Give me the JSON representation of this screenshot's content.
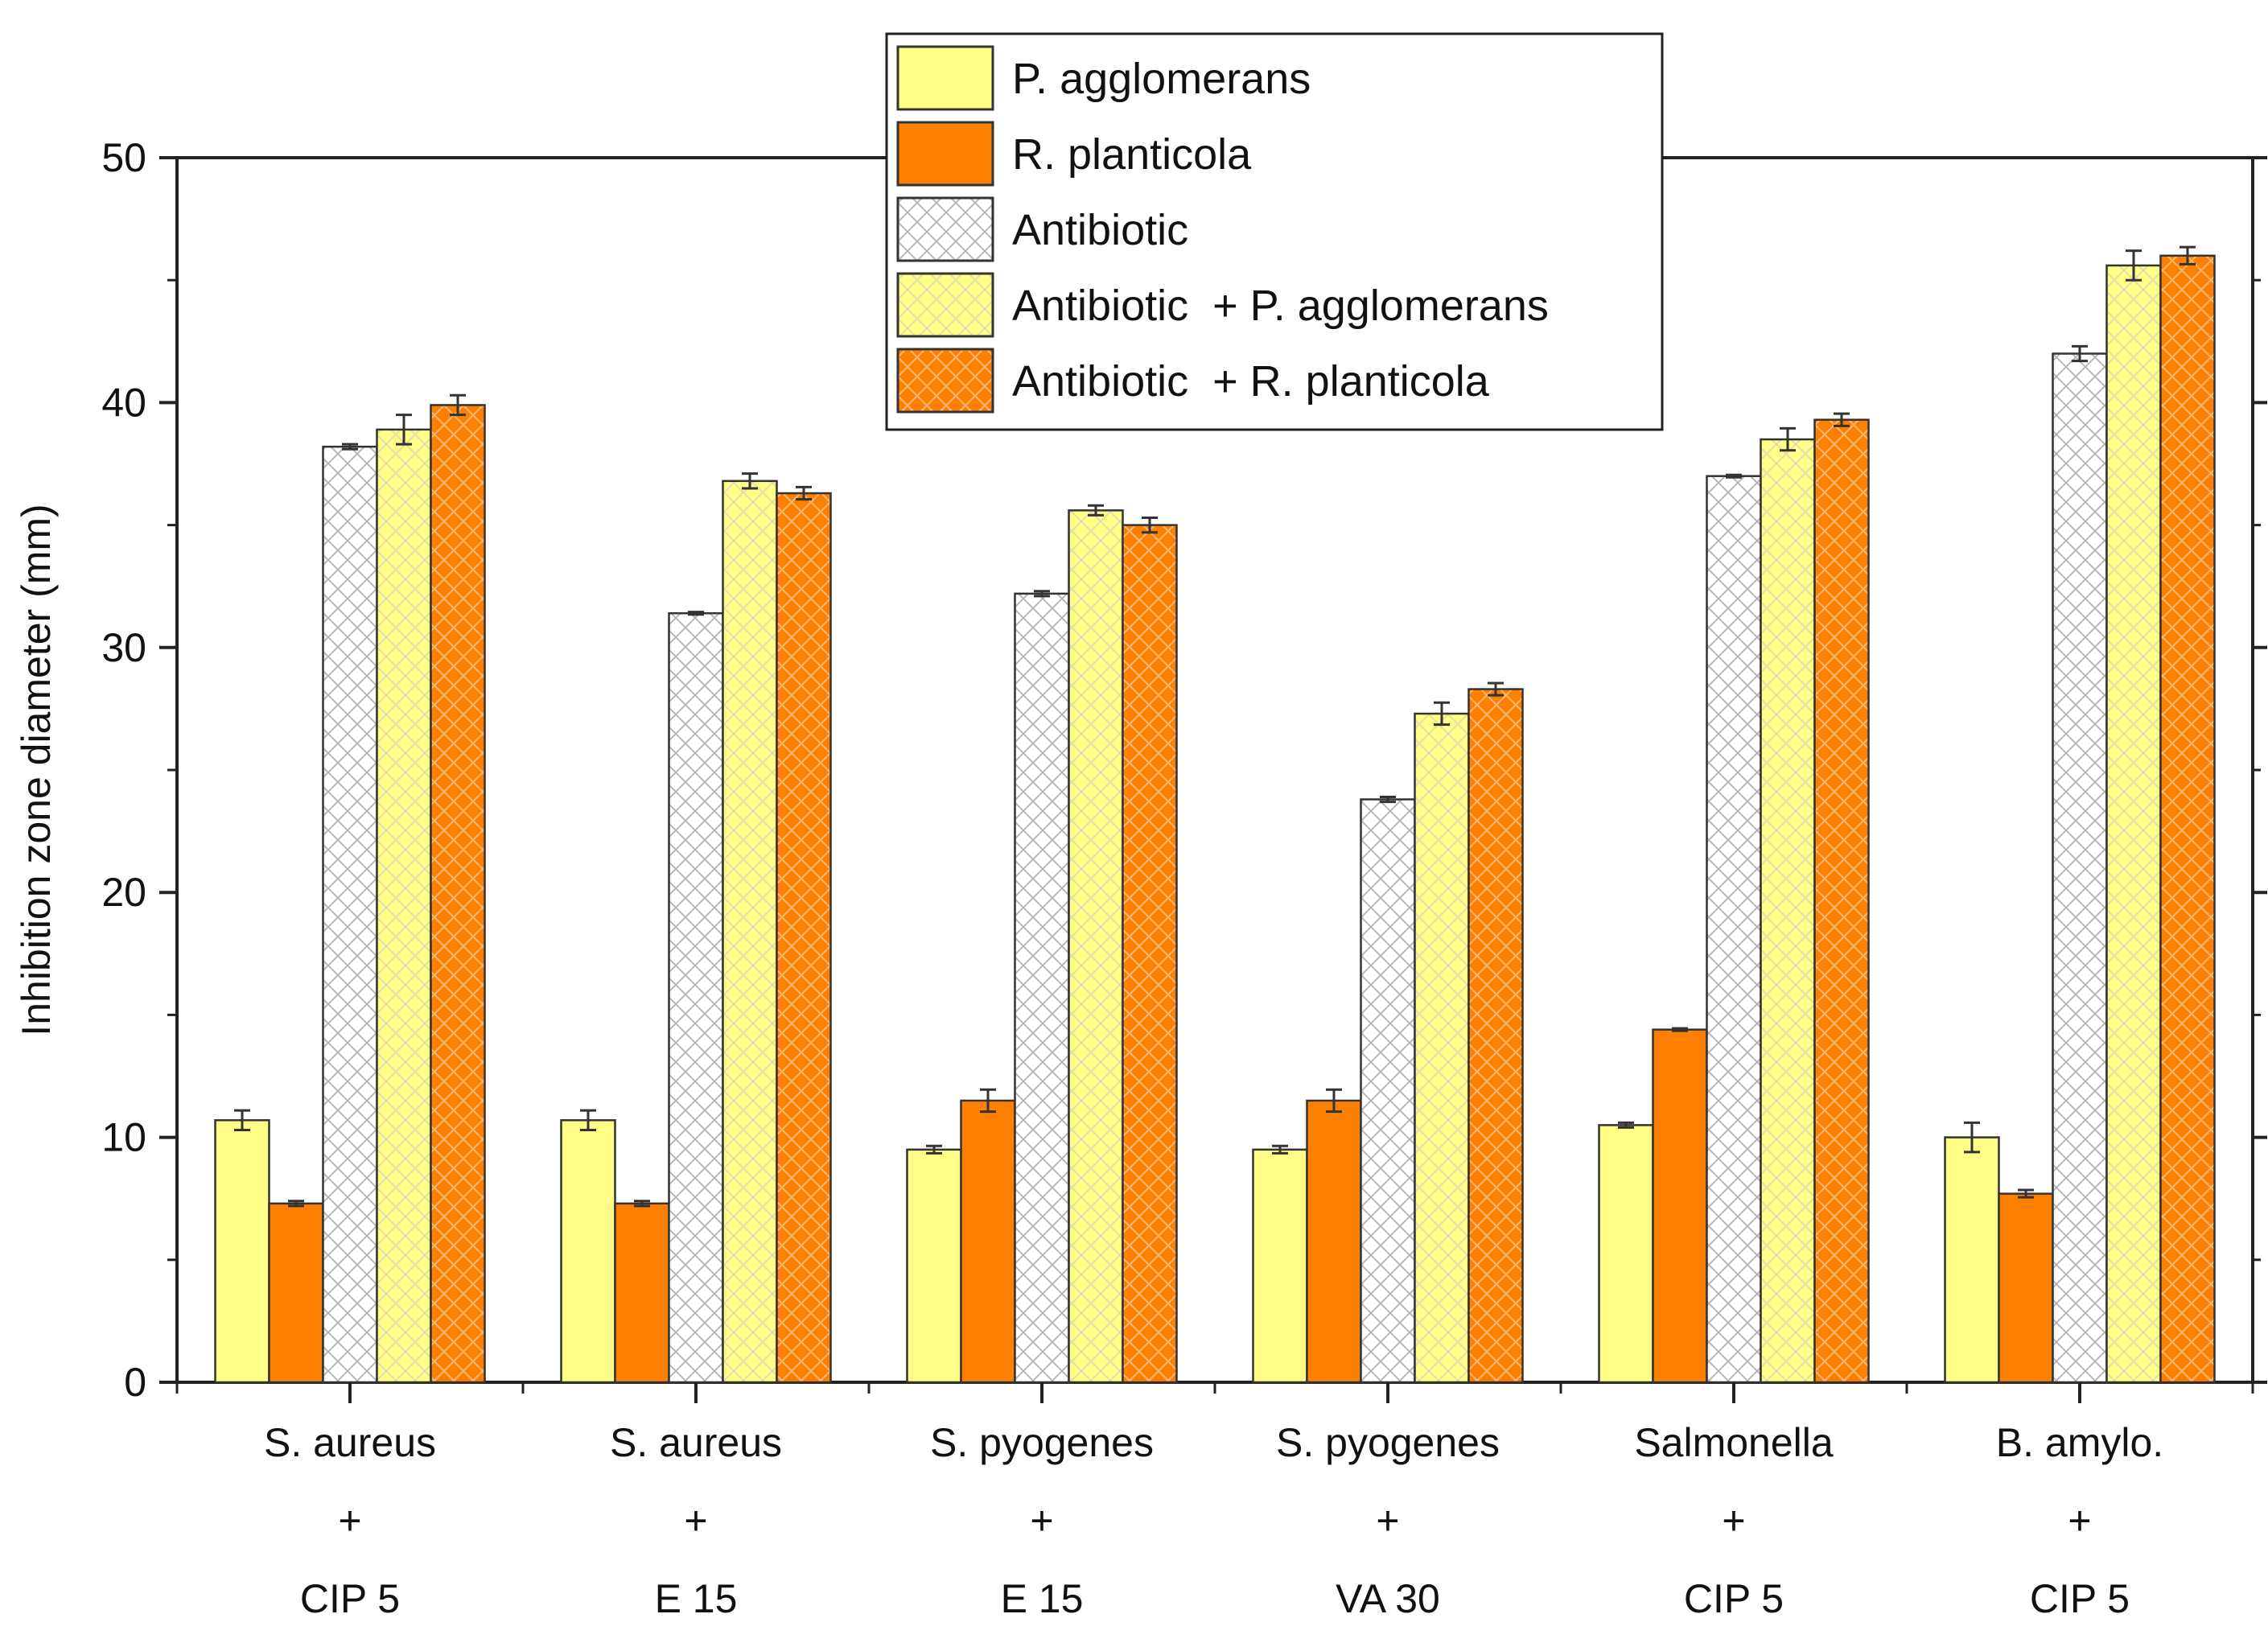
{
  "chart_data": {
    "type": "bar",
    "title": "",
    "xlabel": "",
    "ylabel": "Inhibition zone diameter (mm)",
    "ylim": [
      0,
      50
    ],
    "yticks": [
      0,
      10,
      20,
      30,
      40,
      50
    ],
    "grid": false,
    "legend_position": "top-center",
    "categories": [
      [
        "S. aureus",
        "+",
        "CIP 5"
      ],
      [
        "S. aureus",
        "+",
        "E 15"
      ],
      [
        "S. pyogenes",
        "+",
        "E 15"
      ],
      [
        "S. pyogenes",
        "+",
        "VA 30"
      ],
      [
        "Salmonella",
        "+",
        "CIP 5"
      ],
      [
        "B. amylo.",
        "+",
        "CIP 5"
      ]
    ],
    "series": [
      {
        "name": "P. agglomerans",
        "color": "#ffff88",
        "pattern": "solid",
        "values": [
          10.7,
          10.7,
          9.5,
          9.5,
          10.5,
          10.0
        ],
        "errors": [
          0.4,
          0.4,
          0.15,
          0.15,
          0.1,
          0.6
        ]
      },
      {
        "name": "R. planticola",
        "color": "#ff7f00",
        "pattern": "solid",
        "values": [
          7.3,
          7.3,
          11.5,
          11.5,
          14.4,
          7.7
        ],
        "errors": [
          0.1,
          0.1,
          0.45,
          0.45,
          0.05,
          0.15
        ]
      },
      {
        "name": "Antibiotic",
        "color": "#ffffff",
        "pattern": "crosshatch",
        "values": [
          38.2,
          31.4,
          32.2,
          23.8,
          37.0,
          42.0
        ],
        "errors": [
          0.1,
          0.05,
          0.1,
          0.1,
          0.05,
          0.3
        ]
      },
      {
        "name": "Antibiotic  + P. agglomerans",
        "color": "#ffff88",
        "pattern": "crosshatch",
        "values": [
          38.9,
          36.8,
          35.6,
          27.3,
          38.5,
          45.6
        ],
        "errors": [
          0.6,
          0.3,
          0.2,
          0.45,
          0.45,
          0.6
        ]
      },
      {
        "name": "Antibiotic  + R. planticola",
        "color": "#ff7f00",
        "pattern": "crosshatch",
        "values": [
          39.9,
          36.3,
          35.0,
          28.3,
          39.3,
          46.0
        ],
        "errors": [
          0.4,
          0.25,
          0.3,
          0.25,
          0.25,
          0.35
        ]
      }
    ]
  }
}
